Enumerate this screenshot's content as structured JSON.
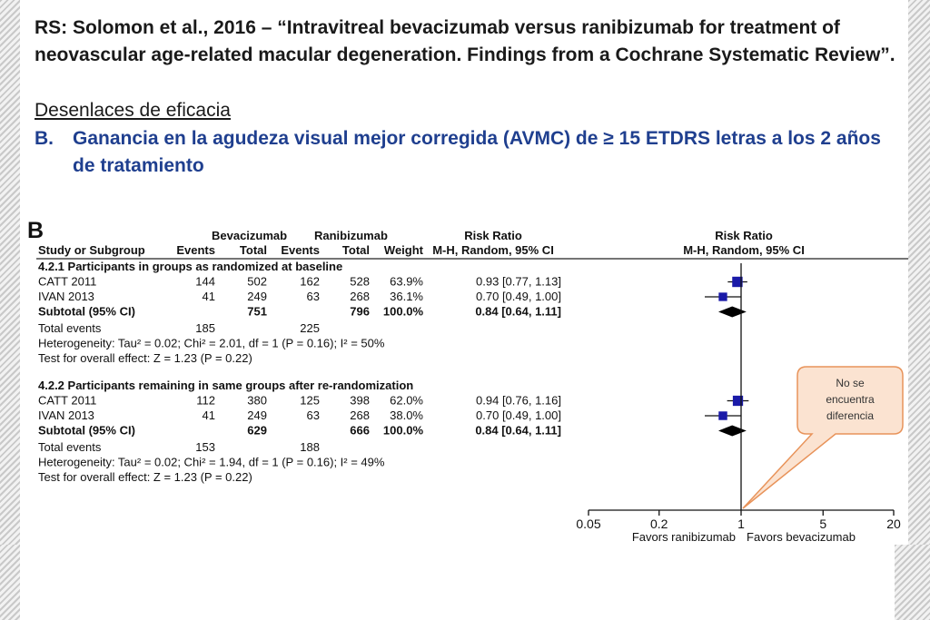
{
  "citation": "RS: Solomon et al., 2016 – “Intravitreal bevacizumab versus ranibizumab for treatment of neovascular age-related macular degeneration. Findings from a Cochrane Systematic Review”.",
  "section_title": "Desenlaces de eficacia",
  "outcome": {
    "letter": "B.",
    "text": "Ganancia en la agudeza visual mejor corregida (AVMC) de ≥ 15 ETDRS letras a los 2 años de tratamiento"
  },
  "callout": {
    "line1": "No se",
    "line2": "encuentra",
    "line3": "diferencia"
  },
  "colors": {
    "heading_text": "#1a1a1a",
    "outcome_text": "#1f3f8f",
    "marker": "#1a1aa8",
    "callout_fill": "#fbe3d1",
    "callout_stroke": "#e8935a"
  },
  "chart_data": {
    "type": "table",
    "panel_label": "B",
    "headers": {
      "study": "Study or Subgroup",
      "group1": "Bevacizumab",
      "group2": "Ranibizumab",
      "events": "Events",
      "total": "Total",
      "weight": "Weight",
      "rr": "Risk Ratio",
      "method": "M-H, Random, 95% CI"
    },
    "subgroups": [
      {
        "title": "4.2.1 Participants in groups as randomized at baseline",
        "studies": [
          {
            "name": "CATT 2011",
            "bev_events": "144",
            "bev_total": "502",
            "ran_events": "162",
            "ran_total": "528",
            "weight": "63.9%",
            "ci_text": "0.93 [0.77, 1.13]",
            "rr": 0.93,
            "lo": 0.77,
            "hi": 1.13,
            "w": 63.9
          },
          {
            "name": "IVAN 2013",
            "bev_events": "41",
            "bev_total": "249",
            "ran_events": "63",
            "ran_total": "268",
            "weight": "36.1%",
            "ci_text": "0.70 [0.49, 1.00]",
            "rr": 0.7,
            "lo": 0.49,
            "hi": 1.0,
            "w": 36.1
          }
        ],
        "subtotal": {
          "label": "Subtotal (95% CI)",
          "bev_total": "751",
          "ran_total": "796",
          "weight": "100.0%",
          "ci_text": "0.84 [0.64, 1.11]",
          "rr": 0.84,
          "lo": 0.64,
          "hi": 1.11
        },
        "total_events": {
          "label": "Total events",
          "bev": "185",
          "ran": "225"
        },
        "heterogeneity": "Heterogeneity: Tau² = 0.02; Chi² = 2.01, df = 1 (P = 0.16); I² = 50%",
        "overall": "Test for overall effect: Z = 1.23 (P = 0.22)"
      },
      {
        "title": "4.2.2 Participants remaining in same groups after re-randomization",
        "studies": [
          {
            "name": "CATT 2011",
            "bev_events": "112",
            "bev_total": "380",
            "ran_events": "125",
            "ran_total": "398",
            "weight": "62.0%",
            "ci_text": "0.94 [0.76, 1.16]",
            "rr": 0.94,
            "lo": 0.76,
            "hi": 1.16,
            "w": 62.0
          },
          {
            "name": "IVAN 2013",
            "bev_events": "41",
            "bev_total": "249",
            "ran_events": "63",
            "ran_total": "268",
            "weight": "38.0%",
            "ci_text": "0.70 [0.49, 1.00]",
            "rr": 0.7,
            "lo": 0.49,
            "hi": 1.0,
            "w": 38.0
          }
        ],
        "subtotal": {
          "label": "Subtotal (95% CI)",
          "bev_total": "629",
          "ran_total": "666",
          "weight": "100.0%",
          "ci_text": "0.84 [0.64, 1.11]",
          "rr": 0.84,
          "lo": 0.64,
          "hi": 1.11
        },
        "total_events": {
          "label": "Total events",
          "bev": "153",
          "ran": "188"
        },
        "heterogeneity": "Heterogeneity: Tau² = 0.02; Chi² = 1.94, df = 1 (P = 0.16); I² = 49%",
        "overall": "Test for overall effect: Z = 1.23 (P = 0.22)"
      }
    ],
    "x_axis": {
      "scale": "log",
      "range": [
        0.05,
        20
      ],
      "ticks": [
        0.05,
        0.2,
        1,
        5,
        20
      ],
      "tick_labels": [
        "0.05",
        "0.2",
        "1",
        "5",
        "20"
      ],
      "label_left": "Favors ranibizumab",
      "label_right": "Favors bevacizumab"
    }
  }
}
